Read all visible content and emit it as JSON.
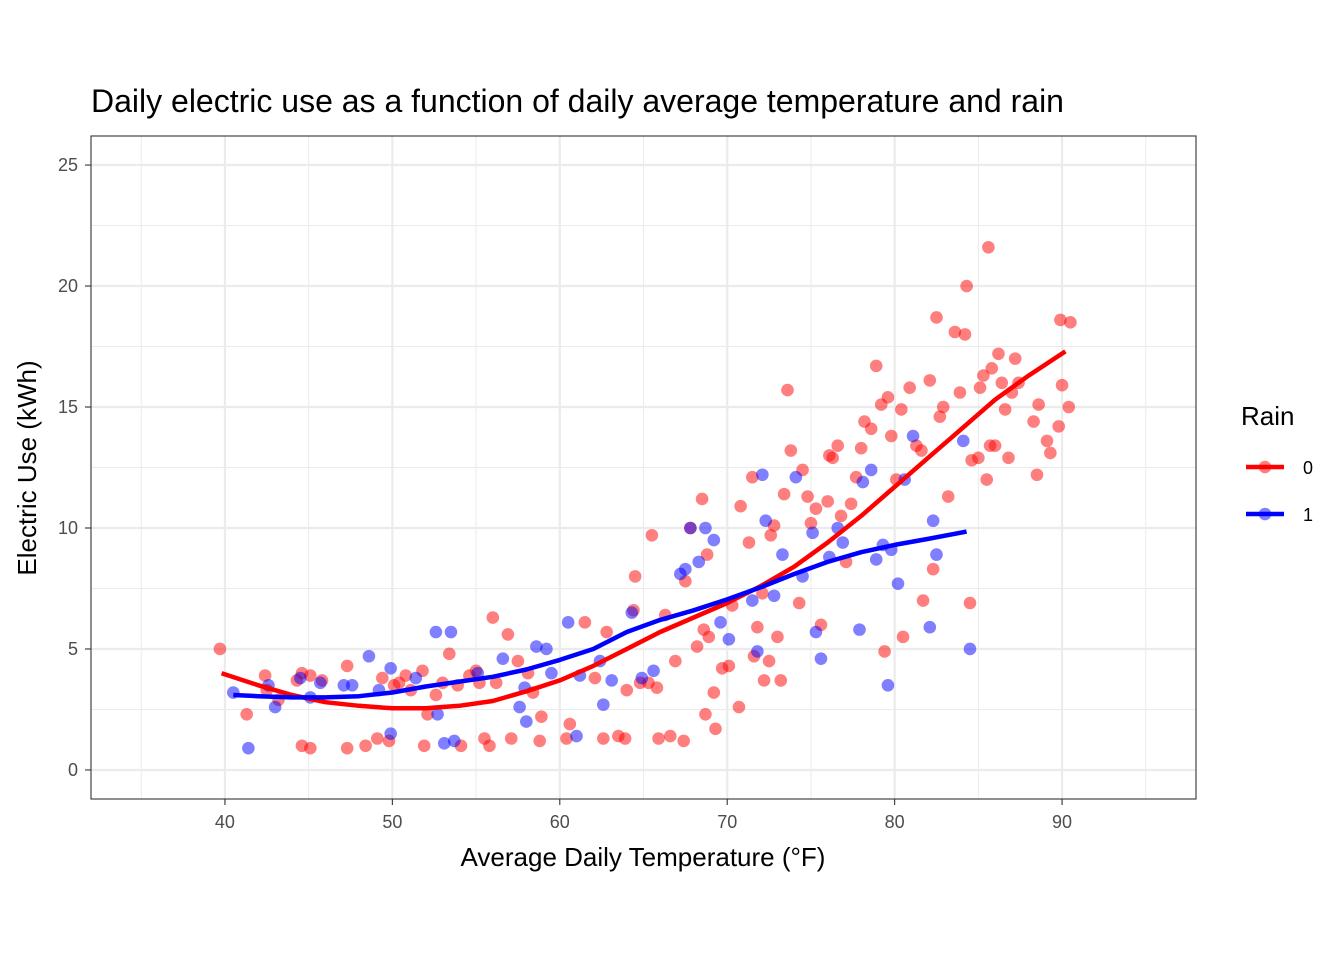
{
  "chart_data": {
    "type": "scatter",
    "title": "Daily electric use as a function of daily average temperature and rain",
    "xlabel": "Average Daily Temperature (°F)",
    "ylabel": "Electric Use (kWh)",
    "xlim": [
      32,
      98
    ],
    "ylim": [
      -1.2,
      26.2
    ],
    "x_ticks": [
      40,
      50,
      60,
      70,
      80,
      90
    ],
    "y_ticks": [
      0,
      5,
      10,
      15,
      20,
      25
    ],
    "grid": true,
    "legend": {
      "title": "Rain",
      "position": "right"
    },
    "series": [
      {
        "name": "0",
        "color": "#ff0000",
        "points": [
          [
            39.7,
            5.0
          ],
          [
            41.3,
            2.3
          ],
          [
            42.4,
            3.9
          ],
          [
            42.5,
            3.3
          ],
          [
            43.2,
            2.9
          ],
          [
            44.3,
            3.7
          ],
          [
            44.6,
            4.0
          ],
          [
            44.6,
            1.0
          ],
          [
            45.1,
            3.9
          ],
          [
            45.1,
            0.9
          ],
          [
            45.8,
            3.7
          ],
          [
            47.3,
            4.3
          ],
          [
            47.3,
            0.9
          ],
          [
            48.4,
            1.0
          ],
          [
            49.1,
            1.3
          ],
          [
            49.4,
            3.8
          ],
          [
            49.8,
            1.2
          ],
          [
            50.1,
            3.5
          ],
          [
            50.4,
            3.6
          ],
          [
            50.8,
            3.9
          ],
          [
            51.1,
            3.3
          ],
          [
            51.8,
            4.1
          ],
          [
            51.9,
            1.0
          ],
          [
            52.1,
            2.3
          ],
          [
            52.6,
            3.1
          ],
          [
            53.0,
            3.6
          ],
          [
            53.4,
            4.8
          ],
          [
            53.9,
            3.5
          ],
          [
            54.1,
            1.0
          ],
          [
            54.6,
            3.9
          ],
          [
            55.0,
            4.1
          ],
          [
            55.2,
            3.6
          ],
          [
            55.5,
            1.3
          ],
          [
            55.8,
            1.0
          ],
          [
            56.0,
            6.3
          ],
          [
            56.2,
            3.6
          ],
          [
            56.9,
            5.6
          ],
          [
            57.1,
            1.3
          ],
          [
            57.5,
            4.5
          ],
          [
            58.1,
            4.0
          ],
          [
            58.4,
            3.2
          ],
          [
            58.8,
            1.2
          ],
          [
            58.9,
            2.2
          ],
          [
            60.4,
            1.3
          ],
          [
            60.6,
            1.9
          ],
          [
            61.5,
            6.1
          ],
          [
            62.1,
            3.8
          ],
          [
            62.6,
            1.3
          ],
          [
            62.8,
            5.7
          ],
          [
            63.5,
            1.4
          ],
          [
            63.9,
            1.3
          ],
          [
            64.0,
            3.3
          ],
          [
            64.4,
            6.6
          ],
          [
            64.5,
            8.0
          ],
          [
            64.8,
            3.6
          ],
          [
            65.3,
            3.6
          ],
          [
            65.5,
            9.7
          ],
          [
            65.8,
            3.4
          ],
          [
            65.9,
            1.3
          ],
          [
            66.3,
            6.4
          ],
          [
            66.6,
            1.4
          ],
          [
            66.9,
            4.5
          ],
          [
            67.4,
            1.2
          ],
          [
            67.5,
            7.8
          ],
          [
            67.8,
            10.0
          ],
          [
            68.2,
            5.1
          ],
          [
            68.5,
            11.2
          ],
          [
            68.6,
            5.8
          ],
          [
            68.7,
            2.3
          ],
          [
            68.8,
            8.9
          ],
          [
            68.9,
            5.5
          ],
          [
            69.2,
            3.2
          ],
          [
            69.3,
            1.7
          ],
          [
            69.7,
            4.2
          ],
          [
            70.1,
            4.3
          ],
          [
            70.3,
            6.8
          ],
          [
            70.7,
            2.6
          ],
          [
            70.8,
            10.9
          ],
          [
            71.3,
            9.4
          ],
          [
            71.5,
            12.1
          ],
          [
            71.6,
            4.7
          ],
          [
            71.8,
            5.9
          ],
          [
            72.1,
            7.3
          ],
          [
            72.2,
            3.7
          ],
          [
            72.5,
            4.5
          ],
          [
            72.6,
            9.7
          ],
          [
            72.8,
            10.1
          ],
          [
            73.0,
            5.5
          ],
          [
            73.2,
            3.7
          ],
          [
            73.4,
            11.4
          ],
          [
            73.6,
            15.7
          ],
          [
            73.8,
            13.2
          ],
          [
            74.3,
            6.9
          ],
          [
            74.5,
            12.4
          ],
          [
            74.8,
            11.3
          ],
          [
            75.0,
            10.2
          ],
          [
            75.3,
            10.8
          ],
          [
            75.6,
            6.0
          ],
          [
            76.0,
            11.1
          ],
          [
            76.1,
            13.0
          ],
          [
            76.3,
            12.9
          ],
          [
            76.6,
            13.4
          ],
          [
            76.8,
            10.5
          ],
          [
            77.1,
            8.6
          ],
          [
            77.4,
            11.0
          ],
          [
            77.7,
            12.1
          ],
          [
            78.0,
            13.3
          ],
          [
            78.2,
            14.4
          ],
          [
            78.6,
            14.1
          ],
          [
            78.9,
            16.7
          ],
          [
            79.2,
            15.1
          ],
          [
            79.4,
            4.9
          ],
          [
            79.6,
            15.4
          ],
          [
            79.8,
            13.8
          ],
          [
            80.1,
            12.0
          ],
          [
            80.4,
            14.9
          ],
          [
            80.5,
            5.5
          ],
          [
            80.9,
            15.8
          ],
          [
            81.3,
            13.4
          ],
          [
            81.6,
            13.2
          ],
          [
            81.7,
            7.0
          ],
          [
            82.1,
            16.1
          ],
          [
            82.3,
            8.3
          ],
          [
            82.5,
            18.7
          ],
          [
            82.7,
            14.6
          ],
          [
            82.9,
            15.0
          ],
          [
            83.2,
            11.3
          ],
          [
            83.6,
            18.1
          ],
          [
            83.9,
            15.6
          ],
          [
            84.2,
            18.0
          ],
          [
            84.3,
            20.0
          ],
          [
            84.5,
            6.9
          ],
          [
            84.6,
            12.8
          ],
          [
            85.0,
            12.9
          ],
          [
            85.1,
            15.8
          ],
          [
            85.3,
            16.3
          ],
          [
            85.5,
            12.0
          ],
          [
            85.6,
            21.6
          ],
          [
            85.7,
            13.4
          ],
          [
            85.8,
            16.6
          ],
          [
            86.0,
            13.4
          ],
          [
            86.2,
            17.2
          ],
          [
            86.4,
            16.0
          ],
          [
            86.6,
            14.9
          ],
          [
            86.8,
            12.9
          ],
          [
            87.0,
            15.6
          ],
          [
            87.2,
            17.0
          ],
          [
            87.4,
            16.0
          ],
          [
            88.3,
            14.4
          ],
          [
            88.5,
            12.2
          ],
          [
            88.6,
            15.1
          ],
          [
            89.1,
            13.6
          ],
          [
            89.3,
            13.1
          ],
          [
            89.8,
            14.2
          ],
          [
            89.9,
            18.6
          ],
          [
            90.0,
            15.9
          ],
          [
            90.4,
            15.0
          ],
          [
            90.5,
            18.5
          ]
        ]
      },
      {
        "name": "1",
        "color": "#0000ff",
        "points": [
          [
            40.5,
            3.2
          ],
          [
            41.4,
            0.9
          ],
          [
            42.6,
            3.5
          ],
          [
            43.0,
            2.6
          ],
          [
            44.5,
            3.8
          ],
          [
            45.1,
            3.0
          ],
          [
            45.7,
            3.6
          ],
          [
            47.1,
            3.5
          ],
          [
            47.6,
            3.5
          ],
          [
            48.6,
            4.7
          ],
          [
            49.2,
            3.3
          ],
          [
            49.9,
            4.2
          ],
          [
            49.9,
            1.5
          ],
          [
            51.4,
            3.8
          ],
          [
            52.6,
            5.7
          ],
          [
            52.7,
            2.3
          ],
          [
            53.1,
            1.1
          ],
          [
            53.5,
            5.7
          ],
          [
            53.7,
            1.2
          ],
          [
            55.1,
            4.0
          ],
          [
            56.6,
            4.6
          ],
          [
            57.6,
            2.6
          ],
          [
            57.9,
            3.4
          ],
          [
            58.0,
            2.0
          ],
          [
            58.6,
            5.1
          ],
          [
            59.2,
            5.0
          ],
          [
            59.5,
            4.0
          ],
          [
            60.5,
            6.1
          ],
          [
            61.0,
            1.4
          ],
          [
            61.2,
            3.9
          ],
          [
            62.4,
            4.5
          ],
          [
            62.6,
            2.7
          ],
          [
            63.1,
            3.7
          ],
          [
            64.3,
            6.5
          ],
          [
            64.9,
            3.8
          ],
          [
            65.6,
            4.1
          ],
          [
            67.2,
            8.1
          ],
          [
            67.5,
            8.3
          ],
          [
            67.8,
            10.0
          ],
          [
            68.3,
            8.6
          ],
          [
            68.7,
            10.0
          ],
          [
            69.2,
            9.5
          ],
          [
            69.6,
            6.1
          ],
          [
            70.1,
            5.4
          ],
          [
            71.5,
            7.0
          ],
          [
            71.8,
            4.9
          ],
          [
            72.1,
            12.2
          ],
          [
            72.3,
            10.3
          ],
          [
            72.8,
            7.2
          ],
          [
            73.3,
            8.9
          ],
          [
            74.1,
            12.1
          ],
          [
            74.5,
            8.0
          ],
          [
            75.1,
            9.8
          ],
          [
            75.3,
            5.7
          ],
          [
            75.6,
            4.6
          ],
          [
            76.1,
            8.8
          ],
          [
            76.6,
            10.0
          ],
          [
            76.9,
            9.4
          ],
          [
            77.9,
            5.8
          ],
          [
            78.1,
            11.9
          ],
          [
            78.6,
            12.4
          ],
          [
            78.9,
            8.7
          ],
          [
            79.3,
            9.3
          ],
          [
            79.6,
            3.5
          ],
          [
            79.8,
            9.1
          ],
          [
            80.2,
            7.7
          ],
          [
            80.6,
            12.0
          ],
          [
            81.1,
            13.8
          ],
          [
            82.1,
            5.9
          ],
          [
            82.3,
            10.3
          ],
          [
            82.5,
            8.9
          ],
          [
            84.1,
            13.6
          ],
          [
            84.5,
            5.0
          ]
        ]
      }
    ],
    "smooth_lines": [
      {
        "name": "0",
        "color": "#ff0000",
        "points": [
          [
            39.8,
            4.0
          ],
          [
            42,
            3.5
          ],
          [
            44,
            3.1
          ],
          [
            46,
            2.8
          ],
          [
            48,
            2.65
          ],
          [
            50,
            2.55
          ],
          [
            52,
            2.55
          ],
          [
            54,
            2.65
          ],
          [
            56,
            2.85
          ],
          [
            58,
            3.25
          ],
          [
            60,
            3.7
          ],
          [
            62,
            4.3
          ],
          [
            64,
            5.0
          ],
          [
            66,
            5.7
          ],
          [
            68,
            6.3
          ],
          [
            70,
            6.9
          ],
          [
            72,
            7.6
          ],
          [
            74,
            8.4
          ],
          [
            76,
            9.4
          ],
          [
            78,
            10.5
          ],
          [
            80,
            11.7
          ],
          [
            82,
            12.9
          ],
          [
            84,
            14.1
          ],
          [
            86,
            15.3
          ],
          [
            88,
            16.3
          ],
          [
            90.2,
            17.3
          ]
        ]
      },
      {
        "name": "1",
        "color": "#0000ff",
        "points": [
          [
            40.5,
            3.1
          ],
          [
            42,
            3.05
          ],
          [
            44,
            3.0
          ],
          [
            46,
            3.0
          ],
          [
            48,
            3.05
          ],
          [
            50,
            3.2
          ],
          [
            52,
            3.45
          ],
          [
            54,
            3.65
          ],
          [
            56,
            3.85
          ],
          [
            58,
            4.15
          ],
          [
            60,
            4.55
          ],
          [
            62,
            5.0
          ],
          [
            64,
            5.7
          ],
          [
            66,
            6.2
          ],
          [
            68,
            6.6
          ],
          [
            70,
            7.05
          ],
          [
            72,
            7.55
          ],
          [
            74,
            8.1
          ],
          [
            76,
            8.6
          ],
          [
            78,
            9.0
          ],
          [
            80,
            9.3
          ],
          [
            82,
            9.55
          ],
          [
            84.3,
            9.85
          ]
        ]
      }
    ]
  }
}
